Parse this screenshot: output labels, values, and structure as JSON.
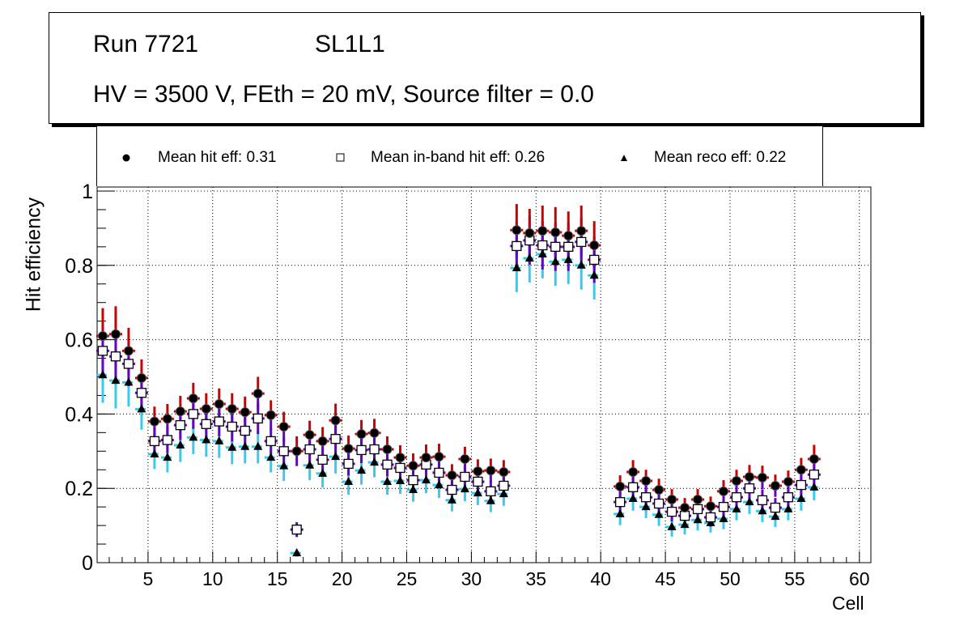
{
  "title": {
    "run": "Run 7721",
    "layer": "SL1L1",
    "conditions": "HV = 3500 V, FEth = 20 mV, Source filter = 0.0"
  },
  "legend": [
    {
      "marker": "filled-circle",
      "label": "Mean hit  eff: 0.31"
    },
    {
      "marker": "open-square",
      "label": "Mean in-band hit eff: 0.26"
    },
    {
      "marker": "filled-triangle",
      "label": "Mean reco eff: 0.22"
    }
  ],
  "chart_data": {
    "type": "scatter",
    "title": "Run 7721 SL1L1 — HV = 3500 V, FEth = 20 mV, Source filter = 0.0",
    "xlabel": "Cell",
    "ylabel": "Hit efficiency",
    "xlim": [
      1,
      61
    ],
    "ylim": [
      0,
      1.02
    ],
    "xticks": [
      5,
      10,
      15,
      20,
      25,
      30,
      35,
      40,
      45,
      50,
      55,
      60
    ],
    "yticks": [
      0,
      0.2,
      0.4,
      0.6,
      0.8,
      1
    ],
    "ytick_labels": [
      "0",
      "0.2",
      "0.4",
      "0.6",
      "0.8",
      "1"
    ],
    "grid": true,
    "legend_position": "top",
    "x": [
      1.5,
      2.5,
      3.5,
      4.5,
      5.5,
      6.5,
      7.5,
      8.5,
      9.5,
      10.5,
      11.5,
      12.5,
      13.5,
      14.5,
      15.5,
      16.5,
      17.5,
      18.5,
      19.5,
      20.5,
      21.5,
      22.5,
      23.5,
      24.5,
      25.5,
      26.5,
      27.5,
      28.5,
      29.5,
      30.5,
      31.5,
      32.5,
      33.5,
      34.5,
      35.5,
      36.5,
      37.5,
      38.5,
      39.5,
      41.5,
      42.5,
      43.5,
      44.5,
      45.5,
      46.5,
      47.5,
      48.5,
      49.5,
      50.5,
      51.5,
      52.5,
      53.5,
      54.5,
      55.5,
      56.5
    ],
    "series": [
      {
        "name": "Mean hit  eff: 0.31",
        "marker": "filled-circle",
        "marker_color": "#000000",
        "error_up_color": "#cc0000",
        "error_down_color": "#6600cc",
        "values": [
          0.61,
          0.615,
          0.57,
          0.497,
          0.38,
          0.387,
          0.407,
          0.442,
          0.414,
          0.427,
          0.414,
          0.405,
          0.455,
          0.397,
          0.366,
          0.3,
          0.344,
          0.327,
          0.383,
          0.307,
          0.346,
          0.349,
          0.305,
          0.283,
          0.261,
          0.283,
          0.285,
          0.235,
          0.279,
          0.246,
          0.248,
          0.244,
          0.895,
          0.887,
          0.893,
          0.889,
          0.88,
          0.893,
          0.854,
          0.205,
          0.244,
          0.22,
          0.196,
          0.17,
          0.148,
          0.17,
          0.152,
          0.192,
          0.22,
          0.231,
          0.229,
          0.207,
          0.218,
          0.25,
          0.279
        ],
        "errors": [
          0.075,
          0.075,
          0.062,
          0.05,
          0.04,
          0.04,
          0.042,
          0.042,
          0.042,
          0.042,
          0.042,
          0.042,
          0.045,
          0.04,
          0.04,
          0.04,
          0.038,
          0.038,
          0.045,
          0.035,
          0.038,
          0.038,
          0.035,
          0.033,
          0.033,
          0.035,
          0.035,
          0.03,
          0.033,
          0.032,
          0.032,
          0.032,
          0.07,
          0.065,
          0.068,
          0.068,
          0.065,
          0.068,
          0.065,
          0.03,
          0.032,
          0.03,
          0.03,
          0.028,
          0.026,
          0.028,
          0.026,
          0.03,
          0.03,
          0.032,
          0.032,
          0.03,
          0.03,
          0.032,
          0.038
        ]
      },
      {
        "name": "Mean in-band hit eff: 0.26",
        "marker": "open-square",
        "marker_color": "#000000",
        "error_color": "#6600cc",
        "values": [
          0.57,
          0.555,
          0.535,
          0.457,
          0.327,
          0.33,
          0.37,
          0.4,
          0.373,
          0.38,
          0.366,
          0.355,
          0.388,
          0.327,
          0.3,
          0.089,
          0.305,
          0.277,
          0.333,
          0.266,
          0.303,
          0.305,
          0.264,
          0.255,
          0.222,
          0.264,
          0.242,
          0.196,
          0.231,
          0.218,
          0.192,
          0.207,
          0.852,
          0.867,
          0.854,
          0.85,
          0.85,
          0.863,
          0.815,
          0.163,
          0.203,
          0.176,
          0.159,
          0.137,
          0.126,
          0.144,
          0.122,
          0.15,
          0.176,
          0.2,
          0.168,
          0.148,
          0.176,
          0.209,
          0.237
        ],
        "errors": [
          0.07,
          0.07,
          0.06,
          0.05,
          0.035,
          0.035,
          0.04,
          0.04,
          0.04,
          0.04,
          0.04,
          0.04,
          0.042,
          0.035,
          0.035,
          0.02,
          0.035,
          0.035,
          0.04,
          0.032,
          0.035,
          0.035,
          0.032,
          0.03,
          0.03,
          0.032,
          0.032,
          0.028,
          0.03,
          0.03,
          0.028,
          0.03,
          0.065,
          0.065,
          0.065,
          0.065,
          0.065,
          0.065,
          0.062,
          0.028,
          0.03,
          0.028,
          0.028,
          0.026,
          0.025,
          0.026,
          0.025,
          0.026,
          0.028,
          0.03,
          0.028,
          0.026,
          0.028,
          0.03,
          0.035
        ]
      },
      {
        "name": "Mean reco eff: 0.22",
        "marker": "filled-triangle",
        "marker_color": "#000000",
        "error_color": "#33ccee",
        "values": [
          0.505,
          0.49,
          0.485,
          0.413,
          0.292,
          0.283,
          0.316,
          0.337,
          0.33,
          0.327,
          0.31,
          0.312,
          0.312,
          0.283,
          0.26,
          0.026,
          0.262,
          0.24,
          0.285,
          0.218,
          0.248,
          0.27,
          0.218,
          0.22,
          0.196,
          0.222,
          0.209,
          0.168,
          0.198,
          0.187,
          0.166,
          0.185,
          0.793,
          0.819,
          0.83,
          0.81,
          0.815,
          0.8,
          0.773,
          0.131,
          0.172,
          0.15,
          0.129,
          0.096,
          0.102,
          0.115,
          0.107,
          0.118,
          0.144,
          0.163,
          0.139,
          0.124,
          0.144,
          0.172,
          0.203
        ],
        "errors": [
          0.075,
          0.075,
          0.065,
          0.055,
          0.04,
          0.04,
          0.045,
          0.045,
          0.045,
          0.045,
          0.045,
          0.045,
          0.045,
          0.04,
          0.04,
          0.01,
          0.04,
          0.038,
          0.045,
          0.035,
          0.038,
          0.04,
          0.035,
          0.035,
          0.032,
          0.035,
          0.035,
          0.03,
          0.033,
          0.032,
          0.03,
          0.032,
          0.065,
          0.065,
          0.065,
          0.065,
          0.065,
          0.065,
          0.065,
          0.03,
          0.032,
          0.03,
          0.03,
          0.026,
          0.026,
          0.028,
          0.026,
          0.028,
          0.03,
          0.032,
          0.03,
          0.028,
          0.03,
          0.032,
          0.035
        ]
      }
    ]
  }
}
